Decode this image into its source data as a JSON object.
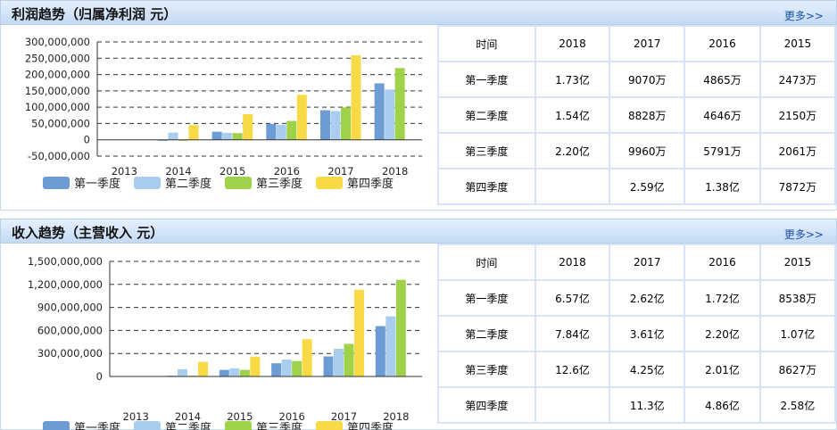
{
  "legend": [
    "第一季度",
    "第二季度",
    "第三季度",
    "第四季度"
  ],
  "colors": [
    "#6d9bd3",
    "#a8cdee",
    "#9fd14a",
    "#f7da45"
  ],
  "more_label": "更多>>",
  "profit": {
    "title": "利润趋势（归属净利润 元）",
    "table": {
      "header": [
        "时间",
        "2018",
        "2017",
        "2016",
        "2015"
      ],
      "rows": [
        [
          "第一季度",
          "1.73亿",
          "9070万",
          "4865万",
          "2473万"
        ],
        [
          "第二季度",
          "1.54亿",
          "8828万",
          "4646万",
          "2150万"
        ],
        [
          "第三季度",
          "2.20亿",
          "9960万",
          "5791万",
          "2061万"
        ],
        [
          "第四季度",
          "",
          "2.59亿",
          "1.38亿",
          "7872万"
        ]
      ]
    }
  },
  "revenue": {
    "title": "收入趋势（主营收入 元）",
    "table": {
      "header": [
        "时间",
        "2018",
        "2017",
        "2016",
        "2015"
      ],
      "rows": [
        [
          "第一季度",
          "6.57亿",
          "2.62亿",
          "1.72亿",
          "8538万"
        ],
        [
          "第二季度",
          "7.84亿",
          "3.61亿",
          "2.20亿",
          "1.07亿"
        ],
        [
          "第三季度",
          "12.6亿",
          "4.25亿",
          "2.01亿",
          "8627万"
        ],
        [
          "第四季度",
          "",
          "11.3亿",
          "4.86亿",
          "2.58亿"
        ]
      ]
    }
  },
  "chart_data": [
    {
      "type": "bar",
      "categories": [
        "2013",
        "2014",
        "2015",
        "2016",
        "2017",
        "2018"
      ],
      "ylim": [
        -50000000,
        300000000
      ],
      "yticks": [
        "300,000,000",
        "250,000,000",
        "200,000,000",
        "150,000,000",
        "100,000,000",
        "50,000,000",
        "0",
        "-50,000,000"
      ],
      "ytick_values": [
        300000000,
        250000000,
        200000000,
        150000000,
        100000000,
        50000000,
        0,
        -50000000
      ],
      "grid": true,
      "legend": "bottom",
      "series": [
        {
          "name": "第一季度",
          "values": [
            null,
            -3000000,
            24730000,
            48650000,
            90700000,
            173000000
          ]
        },
        {
          "name": "第二季度",
          "values": [
            null,
            22000000,
            21500000,
            46460000,
            88280000,
            154000000
          ]
        },
        {
          "name": "第三季度",
          "values": [
            null,
            -3000000,
            20610000,
            57910000,
            99600000,
            220000000
          ]
        },
        {
          "name": "第四季度",
          "values": [
            null,
            45000000,
            78720000,
            138000000,
            259000000,
            null
          ]
        }
      ]
    },
    {
      "type": "bar",
      "categories": [
        "2013",
        "2014",
        "2015",
        "2016",
        "2017",
        "2018"
      ],
      "ylim": [
        0,
        1500000000
      ],
      "yticks": [
        "1,500,000,000",
        "1,200,000,000",
        "900,000,000",
        "600,000,000",
        "300,000,000",
        "0"
      ],
      "ytick_values": [
        1500000000,
        1200000000,
        900000000,
        600000000,
        300000000,
        0
      ],
      "grid": true,
      "legend": "bottom",
      "series": [
        {
          "name": "第一季度",
          "values": [
            null,
            10000000,
            85380000,
            172000000,
            262000000,
            657000000
          ]
        },
        {
          "name": "第二季度",
          "values": [
            null,
            95000000,
            107000000,
            220000000,
            361000000,
            784000000
          ]
        },
        {
          "name": "第三季度",
          "values": [
            null,
            10000000,
            86270000,
            201000000,
            425000000,
            1260000000
          ]
        },
        {
          "name": "第四季度",
          "values": [
            null,
            190000000,
            258000000,
            486000000,
            1130000000,
            null
          ]
        }
      ]
    }
  ]
}
